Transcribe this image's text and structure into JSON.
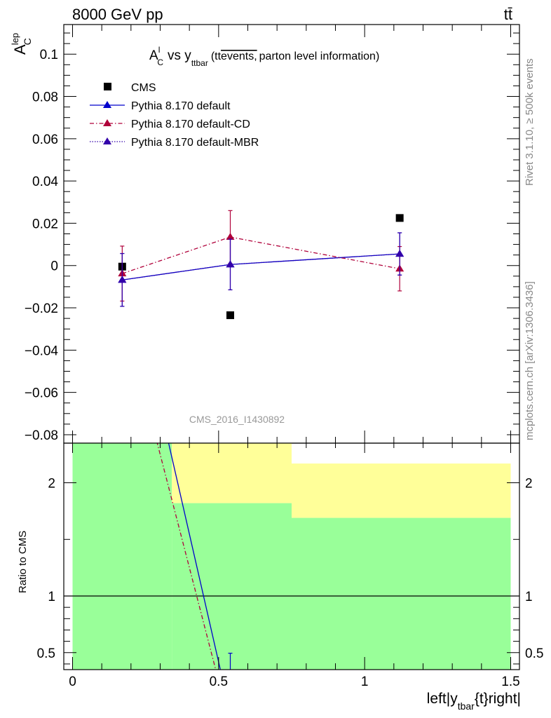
{
  "header": {
    "left": "8000 GeV pp",
    "right": "tt̄"
  },
  "side_labels": {
    "rivet": "Rivet 3.1.10, ≥ 500k events",
    "mcplots": "mcplots.cern.ch [arXiv:1306.3436]"
  },
  "colors": {
    "cms": "#000000",
    "default": "#0000cc",
    "default_cd": "#b0003a",
    "default_mbr": "#3300aa",
    "band_green": "#99ff99",
    "band_yellow": "#ffff99",
    "watermark": "#999999"
  },
  "chart_data": [
    {
      "type": "scatter",
      "title": "A_C^l vs y_ttbar (tt̄ events, parton level information)",
      "ylabel": "A_C^lep",
      "watermark": "CMS_2016_I1430892",
      "xlim": [
        -0.03,
        1.53
      ],
      "ylim": [
        -0.084,
        0.114
      ],
      "yticks": [
        -0.08,
        -0.06,
        -0.04,
        -0.02,
        0,
        0.02,
        0.04,
        0.06,
        0.08,
        0.1
      ],
      "ytick_labels": [
        "−0.08",
        "−0.06",
        "−0.04",
        "−0.02",
        "0",
        "0.02",
        "0.04",
        "0.06",
        "0.08",
        "0.1"
      ],
      "legend_position": "top-left",
      "series": [
        {
          "name": "CMS",
          "style": "marker-square",
          "x": [
            0.17,
            0.54,
            1.12
          ],
          "y": [
            -0.0005,
            -0.0235,
            0.0225
          ]
        },
        {
          "name": "Pythia 8.170 default",
          "style": "solid",
          "x": [
            0.17,
            0.54,
            1.12
          ],
          "y": [
            -0.0068,
            0.0005,
            0.0055
          ],
          "yerr": [
            0.0125,
            0.012,
            0.01
          ]
        },
        {
          "name": "Pythia 8.170 default-CD",
          "style": "dashdot",
          "x": [
            0.17,
            0.54,
            1.12
          ],
          "y": [
            -0.0038,
            0.0135,
            -0.0015
          ],
          "yerr": [
            0.013,
            0.0125,
            0.0105
          ]
        },
        {
          "name": "Pythia 8.170 default-MBR",
          "style": "dotted",
          "x": [
            0.17,
            0.54,
            1.12
          ],
          "y": [
            -0.0068,
            0.0005,
            0.0055
          ],
          "yerr": [
            0.0125,
            0.012,
            0.01
          ]
        }
      ]
    },
    {
      "type": "line",
      "ylabel": "Ratio to CMS",
      "xlabel": "left|y_tbar{t}right|",
      "xlim": [
        -0.03,
        1.53
      ],
      "ylim": [
        0.35,
        2.35
      ],
      "yticks": [
        0.5,
        1,
        2
      ],
      "ytick_labels": [
        "0.5",
        "1",
        "2"
      ],
      "xticks": [
        0,
        0.5,
        1,
        1.5
      ],
      "xtick_labels": [
        "0",
        "0.5",
        "1",
        "1.5"
      ],
      "bands": [
        {
          "x0": 0.0,
          "x1": 0.34,
          "green": [
            0.35,
            2.35
          ],
          "yellow": [
            0.35,
            2.35
          ]
        },
        {
          "x0": 0.34,
          "x1": 0.75,
          "green": [
            0.35,
            1.82
          ],
          "yellow": [
            1.82,
            2.35
          ]
        },
        {
          "x0": 0.75,
          "x1": 1.5,
          "green": [
            0.35,
            1.69
          ],
          "yellow": [
            1.69,
            2.17
          ]
        }
      ],
      "series": [
        {
          "name": "Pythia 8.170 default",
          "style": "solid",
          "x": [
            0.32,
            0.506
          ],
          "y": [
            2.45,
            0.35
          ]
        },
        {
          "name": "Pythia 8.170 default-CD",
          "style": "dashdot",
          "x": [
            0.28,
            0.49
          ],
          "y": [
            2.45,
            0.35
          ]
        }
      ],
      "errorbar": {
        "x": 0.54,
        "ylow": 0.35,
        "yhigh": 0.495
      }
    }
  ]
}
